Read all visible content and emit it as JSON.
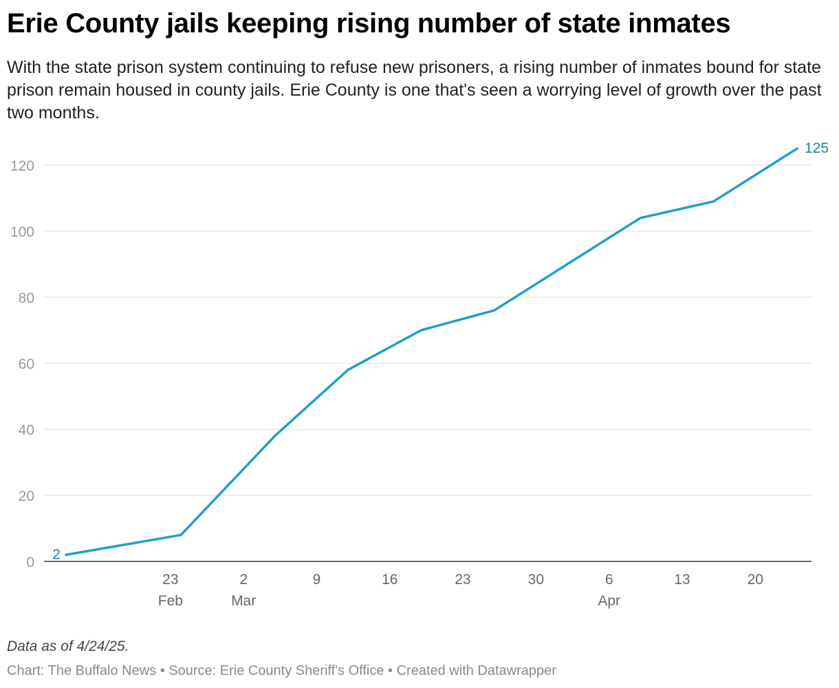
{
  "title": "Erie County jails keeping rising number of state inmates",
  "subtitle": "With the state prison system continuing to refuse new prisoners, a rising number of inmates bound for state prison remain housed in county jails. Erie County is one that's seen a worrying level of growth over the past two months.",
  "note": "Data as of 4/24/25.",
  "footer": "Chart: The Buffalo News • Source: Erie County Sheriff's Office • Created with Datawrapper",
  "colors": {
    "line": "#1f9fc9",
    "label": "#1785ad",
    "grid": "#dddddd",
    "axis": "#333333",
    "tick": "#999999"
  },
  "chart_data": {
    "type": "line",
    "title": "Erie County jails keeping rising number of state inmates",
    "xlabel": "",
    "ylabel": "",
    "ylim": [
      0,
      125
    ],
    "yticks": [
      0,
      20,
      40,
      60,
      80,
      100,
      120
    ],
    "grid": true,
    "series": [
      {
        "x": [
          "2025-02-13",
          "2025-02-24",
          "2025-03-05",
          "2025-03-12",
          "2025-03-19",
          "2025-03-26",
          "2025-04-02",
          "2025-04-09",
          "2025-04-16",
          "2025-04-24"
        ],
        "values": [
          2,
          8,
          38,
          58,
          70,
          76,
          90,
          104,
          109,
          125
        ]
      }
    ],
    "xticks": [
      {
        "date": "2025-02-23",
        "label": "23",
        "sublabel": "Feb"
      },
      {
        "date": "2025-03-02",
        "label": "2",
        "sublabel": "Mar"
      },
      {
        "date": "2025-03-09",
        "label": "9",
        "sublabel": ""
      },
      {
        "date": "2025-03-16",
        "label": "16",
        "sublabel": ""
      },
      {
        "date": "2025-03-23",
        "label": "23",
        "sublabel": ""
      },
      {
        "date": "2025-03-30",
        "label": "30",
        "sublabel": ""
      },
      {
        "date": "2025-04-06",
        "label": "6",
        "sublabel": "Apr"
      },
      {
        "date": "2025-04-13",
        "label": "13",
        "sublabel": ""
      },
      {
        "date": "2025-04-20",
        "label": "20",
        "sublabel": ""
      }
    ],
    "annotations": [
      {
        "label": "2",
        "point": "first"
      },
      {
        "label": "125",
        "point": "last"
      }
    ]
  }
}
